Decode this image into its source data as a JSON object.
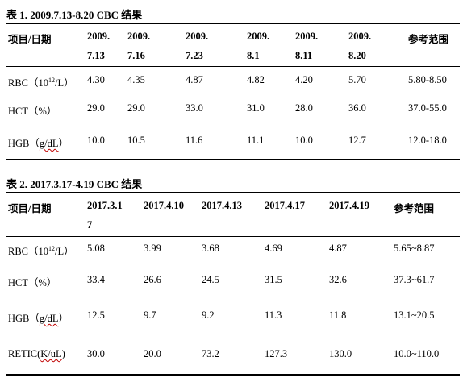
{
  "table1": {
    "caption": "表 1. 2009.7.13-8.20 CBC 结果",
    "header": {
      "item": "项目/日期",
      "dates_line1": [
        "2009.",
        "2009.",
        "2009.",
        "2009.",
        "2009.",
        "2009."
      ],
      "dates_line2": [
        "7.13",
        "7.16",
        "7.23",
        "8.1",
        "8.11",
        "8.20"
      ],
      "ref": "参考范围"
    },
    "rows": [
      {
        "label_pre": "RBC（10",
        "label_sup": "12",
        "label_post": "/L）",
        "values": [
          "4.30",
          "4.35",
          "4.87",
          "4.82",
          "4.20",
          "5.70"
        ],
        "ref": "5.80-8.50"
      },
      {
        "label": "HCT（%）",
        "values": [
          "29.0",
          "29.0",
          "33.0",
          "31.0",
          "28.0",
          "36.0"
        ],
        "ref": "37.0-55.0"
      },
      {
        "label_pre": "HGB（",
        "label_wavy": "g/dL",
        "label_post": "）",
        "values": [
          "10.0",
          "10.5",
          "11.6",
          "11.1",
          "10.0",
          "12.7"
        ],
        "ref": "12.0-18.0"
      }
    ]
  },
  "table2": {
    "caption": "表 2. 2017.3.17-4.19 CBC 结果",
    "header": {
      "item": "项目/日期",
      "dates": [
        "2017.3.1",
        "2017.4.10",
        "2017.4.13",
        "2017.4.17",
        "2017.4.19"
      ],
      "date0_wrap": "7",
      "ref": "参考范围"
    },
    "rows": [
      {
        "label_pre": "RBC（10",
        "label_sup": "12",
        "label_post": "/L）",
        "values": [
          "5.08",
          "3.99",
          "3.68",
          "4.69",
          "4.87"
        ],
        "ref": "5.65~8.87"
      },
      {
        "label": "HCT（%）",
        "values": [
          "33.4",
          "26.6",
          "24.5",
          "31.5",
          "32.6"
        ],
        "ref": "37.3~61.7"
      },
      {
        "label_pre": "HGB（",
        "label_wavy": "g/dL",
        "label_post": "）",
        "values": [
          "12.5",
          "9.7",
          "9.2",
          "11.3",
          "11.8"
        ],
        "ref": "13.1~20.5"
      },
      {
        "label_pre": "RETIC(",
        "label_wavy": "K/uL",
        "label_post": ")",
        "values": [
          "30.0",
          "20.0",
          "73.2",
          "127.3",
          "130.0"
        ],
        "ref": "10.0~110.0"
      }
    ]
  }
}
